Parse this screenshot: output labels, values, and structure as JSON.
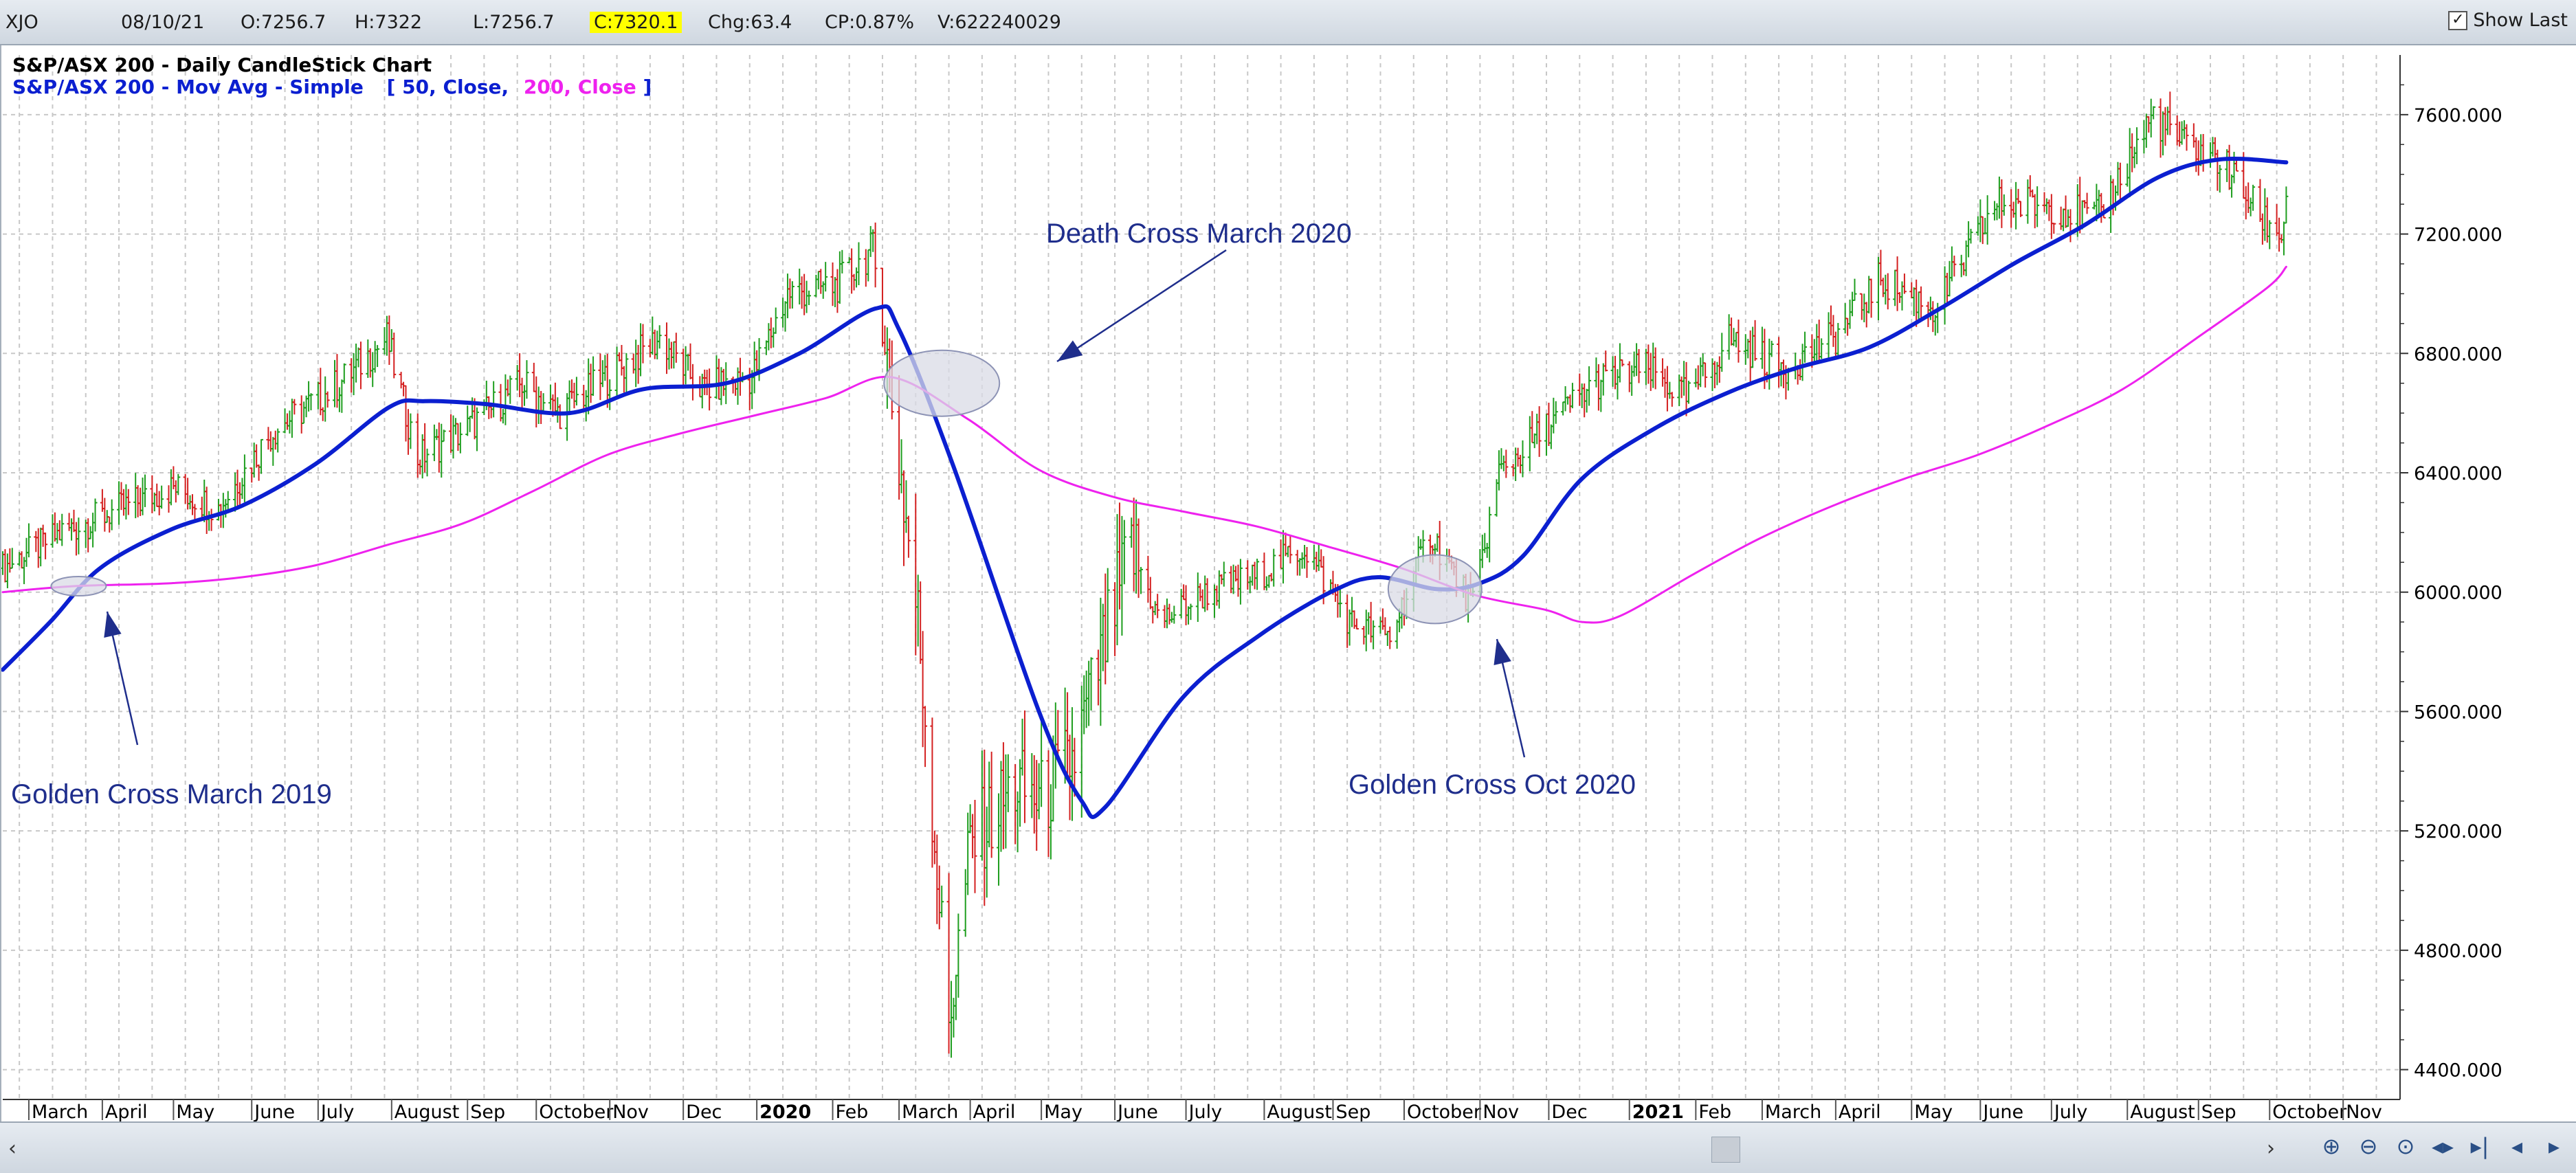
{
  "topbar": {
    "symbol": "XJO",
    "date": "08/10/21",
    "open": "O:7256.7",
    "high": "H:7322",
    "low": "L:7256.7",
    "close": "C:7320.1",
    "change": "Chg:63.4",
    "change_pct": "CP:0.87%",
    "volume": "V:622240029",
    "show_last_label": "Show Last",
    "show_last_checked": "✓"
  },
  "header": {
    "chart_title": "S&P/ASX 200 - Daily CandleStick Chart",
    "mov_avg_prefix": "S&P/ASX 200 - Mov Avg - Simple",
    "bracket_open": "[",
    "ma1_params": "50, Close,",
    "ma2_params": "200, Close",
    "bracket_close": "]"
  },
  "colors": {
    "ma50": "#0b1fd0",
    "ma200": "#ee22ee",
    "up": "#1f9e1f",
    "down": "#d42020",
    "annotation": "#1f2e8c",
    "grid": "#c8c8c8",
    "ellipse_fill": "#d9dbe6",
    "ellipse_stroke": "#8d93b5"
  },
  "annotations": [
    {
      "text": "Death Cross March 2020",
      "at": "2020-03"
    },
    {
      "text": "Golden Cross March 2019",
      "at": "2019-03"
    },
    {
      "text": "Golden Cross Oct 2020",
      "at": "2020-10"
    }
  ],
  "scrollbar": {
    "left_arrow": "‹",
    "right_arrow": "›",
    "nav_icons": [
      "zoom-in-icon",
      "zoom-out-icon",
      "zoom-reset-icon",
      "scroll-both-icon",
      "scroll-end-icon",
      "scroll-back-icon",
      "scroll-forward-icon"
    ],
    "nav_glyphs": [
      "⊕",
      "⊖",
      "⊙",
      "◂▸",
      "▸|",
      "◂",
      "▸"
    ]
  },
  "chart_data": {
    "type": "candlestick",
    "title": "S&P/ASX 200 - Daily CandleStick Chart",
    "x_range": [
      "2019-02-18",
      "2021-11-25"
    ],
    "ylim": [
      4300,
      7800
    ],
    "y_ticks": [
      4400,
      4800,
      5200,
      5600,
      6000,
      6400,
      6800,
      7200,
      7600
    ],
    "y_tick_labels": [
      "4400.000",
      "4800.000",
      "5200.000",
      "5600.000",
      "6000.000",
      "6400.000",
      "6800.000",
      "7200.000",
      "7600.000"
    ],
    "x_ticks": [
      {
        "date": "2019-03-01",
        "label": "March",
        "bold": false
      },
      {
        "date": "2019-04-01",
        "label": "April",
        "bold": false
      },
      {
        "date": "2019-05-01",
        "label": "May",
        "bold": false
      },
      {
        "date": "2019-06-03",
        "label": "June",
        "bold": false
      },
      {
        "date": "2019-07-01",
        "label": "July",
        "bold": false
      },
      {
        "date": "2019-08-01",
        "label": "August",
        "bold": false
      },
      {
        "date": "2019-09-02",
        "label": "Sep",
        "bold": false
      },
      {
        "date": "2019-10-01",
        "label": "October",
        "bold": false
      },
      {
        "date": "2019-11-01",
        "label": "Nov",
        "bold": false
      },
      {
        "date": "2019-12-02",
        "label": "Dec",
        "bold": false
      },
      {
        "date": "2020-01-02",
        "label": "2020",
        "bold": true
      },
      {
        "date": "2020-02-03",
        "label": "Feb",
        "bold": false
      },
      {
        "date": "2020-03-02",
        "label": "March",
        "bold": false
      },
      {
        "date": "2020-04-01",
        "label": "April",
        "bold": false
      },
      {
        "date": "2020-05-01",
        "label": "May",
        "bold": false
      },
      {
        "date": "2020-06-01",
        "label": "June",
        "bold": false
      },
      {
        "date": "2020-07-01",
        "label": "July",
        "bold": false
      },
      {
        "date": "2020-08-03",
        "label": "August",
        "bold": false
      },
      {
        "date": "2020-09-01",
        "label": "Sep",
        "bold": false
      },
      {
        "date": "2020-10-01",
        "label": "October",
        "bold": false
      },
      {
        "date": "2020-11-02",
        "label": "Nov",
        "bold": false
      },
      {
        "date": "2020-12-01",
        "label": "Dec",
        "bold": false
      },
      {
        "date": "2021-01-04",
        "label": "2021",
        "bold": true
      },
      {
        "date": "2021-02-01",
        "label": "Feb",
        "bold": false
      },
      {
        "date": "2021-03-01",
        "label": "March",
        "bold": false
      },
      {
        "date": "2021-04-01",
        "label": "April",
        "bold": false
      },
      {
        "date": "2021-05-03",
        "label": "May",
        "bold": false
      },
      {
        "date": "2021-06-01",
        "label": "June",
        "bold": false
      },
      {
        "date": "2021-07-01",
        "label": "July",
        "bold": false
      },
      {
        "date": "2021-08-02",
        "label": "August",
        "bold": false
      },
      {
        "date": "2021-09-01",
        "label": "Sep",
        "bold": false
      },
      {
        "date": "2021-10-01",
        "label": "October",
        "bold": false
      },
      {
        "date": "2021-11-01",
        "label": "Nov",
        "bold": false
      }
    ],
    "price_path": [
      [
        "2019-02-18",
        6080
      ],
      [
        "2019-03-15",
        6200
      ],
      [
        "2019-04-15",
        6300
      ],
      [
        "2019-05-01",
        6350
      ],
      [
        "2019-05-20",
        6280
      ],
      [
        "2019-06-12",
        6540
      ],
      [
        "2019-07-10",
        6700
      ],
      [
        "2019-07-30",
        6850
      ],
      [
        "2019-08-12",
        6450
      ],
      [
        "2019-09-02",
        6550
      ],
      [
        "2019-09-25",
        6700
      ],
      [
        "2019-10-10",
        6600
      ],
      [
        "2019-11-05",
        6750
      ],
      [
        "2019-11-22",
        6850
      ],
      [
        "2019-12-10",
        6680
      ],
      [
        "2019-12-31",
        6720
      ],
      [
        "2020-01-15",
        7000
      ],
      [
        "2020-02-05",
        7030
      ],
      [
        "2020-02-20",
        7150
      ],
      [
        "2020-03-02",
        6450
      ],
      [
        "2020-03-10",
        5900
      ],
      [
        "2020-03-23",
        4550
      ],
      [
        "2020-04-01",
        5150
      ],
      [
        "2020-04-20",
        5350
      ],
      [
        "2020-05-01",
        5300
      ],
      [
        "2020-05-15",
        5450
      ],
      [
        "2020-06-08",
        6150
      ],
      [
        "2020-06-20",
        5900
      ],
      [
        "2020-07-10",
        6000
      ],
      [
        "2020-07-30",
        6050
      ],
      [
        "2020-08-20",
        6150
      ],
      [
        "2020-09-08",
        5900
      ],
      [
        "2020-09-25",
        5850
      ],
      [
        "2020-10-12",
        6200
      ],
      [
        "2020-10-30",
        5950
      ],
      [
        "2020-11-10",
        6400
      ],
      [
        "2020-11-30",
        6550
      ],
      [
        "2020-12-20",
        6700
      ],
      [
        "2021-01-10",
        6750
      ],
      [
        "2021-01-29",
        6650
      ],
      [
        "2021-02-15",
        6850
      ],
      [
        "2021-03-10",
        6750
      ],
      [
        "2021-03-31",
        6850
      ],
      [
        "2021-04-20",
        7050
      ],
      [
        "2021-05-13",
        6950
      ],
      [
        "2021-06-08",
        7300
      ],
      [
        "2021-06-30",
        7300
      ],
      [
        "2021-07-20",
        7250
      ],
      [
        "2021-08-13",
        7600
      ],
      [
        "2021-08-25",
        7500
      ],
      [
        "2021-09-10",
        7450
      ],
      [
        "2021-09-28",
        7250
      ],
      [
        "2021-10-06",
        7200
      ],
      [
        "2021-10-08",
        7320
      ]
    ],
    "series": [
      {
        "name": "50, Close",
        "values": [
          [
            "2019-02-18",
            5740
          ],
          [
            "2019-03-10",
            5900
          ],
          [
            "2019-03-31",
            6080
          ],
          [
            "2019-04-30",
            6210
          ],
          [
            "2019-05-30",
            6290
          ],
          [
            "2019-06-30",
            6430
          ],
          [
            "2019-07-31",
            6620
          ],
          [
            "2019-08-15",
            6640
          ],
          [
            "2019-09-10",
            6630
          ],
          [
            "2019-10-15",
            6600
          ],
          [
            "2019-11-15",
            6680
          ],
          [
            "2019-12-20",
            6700
          ],
          [
            "2020-01-20",
            6800
          ],
          [
            "2020-02-21",
            6950
          ],
          [
            "2020-03-02",
            6880
          ],
          [
            "2020-03-25",
            6420
          ],
          [
            "2020-04-30",
            5600
          ],
          [
            "2020-05-18",
            5300
          ],
          [
            "2020-05-28",
            5280
          ],
          [
            "2020-06-30",
            5650
          ],
          [
            "2020-07-31",
            5850
          ],
          [
            "2020-08-31",
            6000
          ],
          [
            "2020-09-20",
            6050
          ],
          [
            "2020-10-15",
            6010
          ],
          [
            "2020-11-02",
            6030
          ],
          [
            "2020-11-20",
            6120
          ],
          [
            "2020-12-15",
            6380
          ],
          [
            "2021-01-15",
            6550
          ],
          [
            "2021-02-15",
            6670
          ],
          [
            "2021-03-15",
            6750
          ],
          [
            "2021-04-15",
            6820
          ],
          [
            "2021-05-15",
            6950
          ],
          [
            "2021-06-15",
            7100
          ],
          [
            "2021-07-15",
            7230
          ],
          [
            "2021-08-15",
            7390
          ],
          [
            "2021-09-10",
            7450
          ],
          [
            "2021-10-08",
            7440
          ]
        ]
      },
      {
        "name": "200, Close",
        "values": [
          [
            "2019-02-18",
            6000
          ],
          [
            "2019-03-20",
            6020
          ],
          [
            "2019-04-30",
            6030
          ],
          [
            "2019-05-30",
            6050
          ],
          [
            "2019-06-30",
            6090
          ],
          [
            "2019-07-31",
            6160
          ],
          [
            "2019-08-31",
            6230
          ],
          [
            "2019-09-30",
            6340
          ],
          [
            "2019-10-31",
            6460
          ],
          [
            "2019-11-30",
            6530
          ],
          [
            "2019-12-31",
            6590
          ],
          [
            "2020-01-31",
            6650
          ],
          [
            "2020-02-28",
            6720
          ],
          [
            "2020-03-31",
            6580
          ],
          [
            "2020-04-30",
            6410
          ],
          [
            "2020-05-31",
            6320
          ],
          [
            "2020-06-30",
            6270
          ],
          [
            "2020-07-31",
            6220
          ],
          [
            "2020-08-31",
            6150
          ],
          [
            "2020-09-30",
            6080
          ],
          [
            "2020-10-31",
            5990
          ],
          [
            "2020-11-30",
            5940
          ],
          [
            "2020-12-15",
            5900
          ],
          [
            "2020-12-31",
            5920
          ],
          [
            "2021-01-31",
            6060
          ],
          [
            "2021-02-28",
            6180
          ],
          [
            "2021-03-31",
            6290
          ],
          [
            "2021-04-30",
            6380
          ],
          [
            "2021-05-31",
            6460
          ],
          [
            "2021-06-30",
            6560
          ],
          [
            "2021-07-31",
            6680
          ],
          [
            "2021-08-31",
            6850
          ],
          [
            "2021-09-30",
            7020
          ],
          [
            "2021-10-08",
            7090
          ]
        ]
      }
    ]
  }
}
